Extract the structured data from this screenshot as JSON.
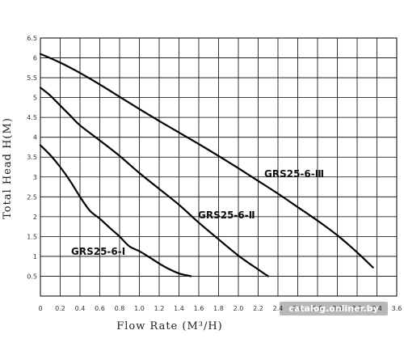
{
  "chart_data": {
    "type": "line",
    "xlabel": "Flow Rate (M³/H)",
    "ylabel": "Total Head H(M)",
    "xlim": [
      0,
      3.6
    ],
    "ylim": [
      0,
      6.5
    ],
    "x_ticks": [
      "0",
      "0.2",
      "0.4",
      "0.6",
      "0.8",
      "1.0",
      "1.2",
      "1.4",
      "1.6",
      "1.8",
      "2.0",
      "2.2",
      "2.4",
      "2.6",
      "2.8",
      "3.0",
      "3.2",
      "3.4",
      "3.6"
    ],
    "y_ticks": [
      "0.5",
      "1",
      "1.5",
      "2",
      "2.5",
      "3",
      "3.5",
      "4",
      "4.5",
      "5",
      "5.5",
      "6",
      "6.5"
    ],
    "grid": true,
    "series": [
      {
        "name": "GRS25-6-Ⅲ",
        "x": [
          0,
          0.2,
          0.4,
          0.6,
          0.8,
          1.0,
          1.2,
          1.4,
          1.6,
          1.8,
          2.0,
          2.2,
          2.4,
          2.6,
          2.8,
          3.0,
          3.2,
          3.36
        ],
        "y": [
          6.1,
          5.88,
          5.62,
          5.33,
          5.02,
          4.71,
          4.41,
          4.12,
          3.83,
          3.53,
          3.22,
          2.9,
          2.58,
          2.24,
          1.9,
          1.53,
          1.1,
          0.72
        ]
      },
      {
        "name": "GRS25-6-Ⅱ",
        "x": [
          0,
          0.1,
          0.2,
          0.3,
          0.4,
          0.6,
          0.8,
          1.0,
          1.2,
          1.4,
          1.6,
          1.8,
          2.0,
          2.2,
          2.3
        ],
        "y": [
          5.25,
          5.05,
          4.8,
          4.55,
          4.3,
          3.92,
          3.53,
          3.1,
          2.7,
          2.3,
          1.85,
          1.43,
          1.02,
          0.67,
          0.5
        ]
      },
      {
        "name": "GRS25-6-Ⅰ",
        "x": [
          0,
          0.1,
          0.2,
          0.3,
          0.4,
          0.5,
          0.6,
          0.7,
          0.8,
          0.9,
          1.0,
          1.1,
          1.2,
          1.3,
          1.4,
          1.52
        ],
        "y": [
          3.8,
          3.55,
          3.25,
          2.9,
          2.5,
          2.15,
          1.95,
          1.72,
          1.5,
          1.25,
          1.13,
          0.98,
          0.82,
          0.68,
          0.57,
          0.5
        ]
      }
    ]
  },
  "watermark": "catalog.onliner.by"
}
